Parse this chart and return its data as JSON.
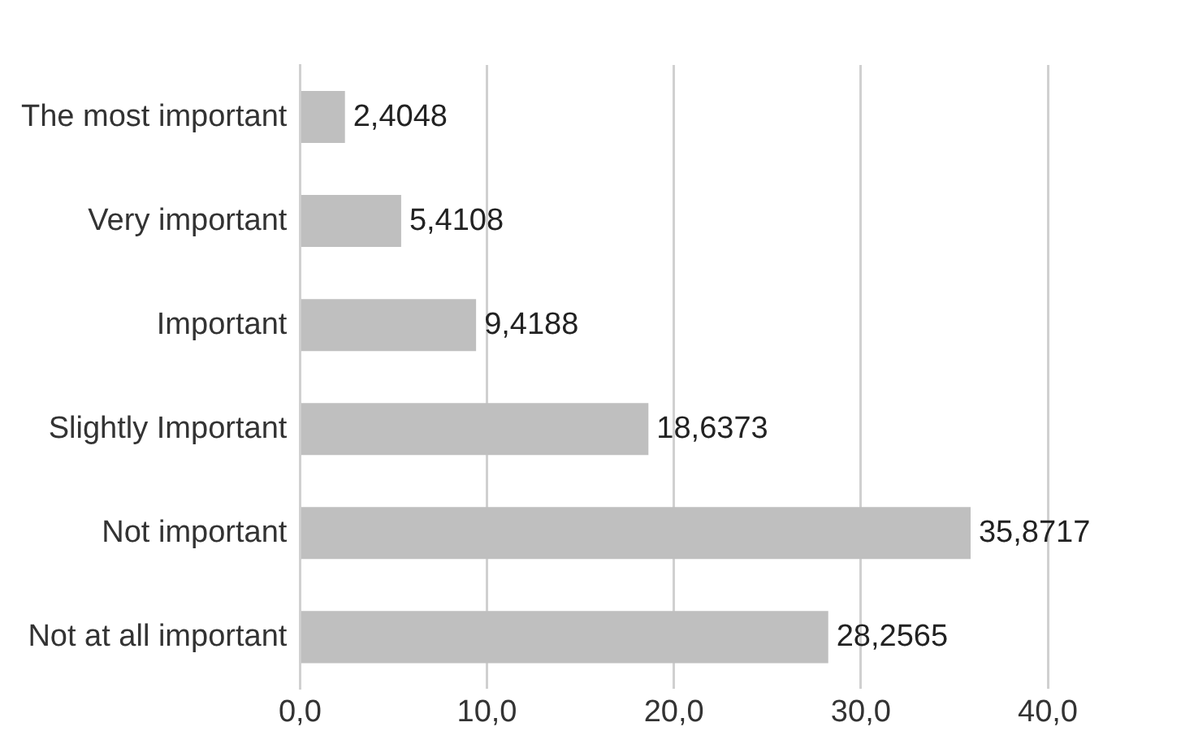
{
  "chart_data": {
    "type": "bar",
    "orientation": "horizontal",
    "categories": [
      "The most important",
      "Very important",
      "Important",
      "Slightly Important",
      "Not important",
      "Not at all important"
    ],
    "values": [
      2.4048,
      5.4108,
      9.4188,
      18.6373,
      35.8717,
      28.2565
    ],
    "value_labels": [
      "2,4048",
      "5,4108",
      "9,4188",
      "18,6373",
      "35,8717",
      "28,2565"
    ],
    "color": "#bfbfbf",
    "xlim": [
      0,
      40
    ],
    "xticks": [
      {
        "value": 0,
        "label": "0,0"
      },
      {
        "value": 10,
        "label": "10,0"
      },
      {
        "value": 20,
        "label": "20,0"
      },
      {
        "value": 30,
        "label": "30,0"
      },
      {
        "value": 40,
        "label": "40,0"
      }
    ],
    "grid": "x",
    "legend": false
  }
}
